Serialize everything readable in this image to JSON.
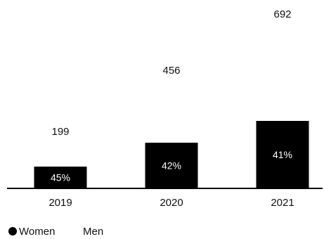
{
  "chart_data": {
    "type": "bar",
    "categories": [
      "2019",
      "2020",
      "2021"
    ],
    "series": [
      {
        "name": "Women",
        "values": [
          199,
          456,
          692
        ],
        "share_labels": [
          "45%",
          "42%",
          "41%"
        ],
        "color": "#000000"
      }
    ],
    "legend": {
      "position": "bottom-left",
      "items": [
        {
          "label": "Women",
          "marker": "filled-circle",
          "color": "#000000"
        },
        {
          "label": "Men",
          "marker": "none",
          "color": "#ffffff"
        }
      ]
    },
    "grid": false,
    "colors": {
      "bar": "#000000",
      "axis": "#000000",
      "text": "#111111",
      "bar_text": "#ffffff"
    }
  }
}
